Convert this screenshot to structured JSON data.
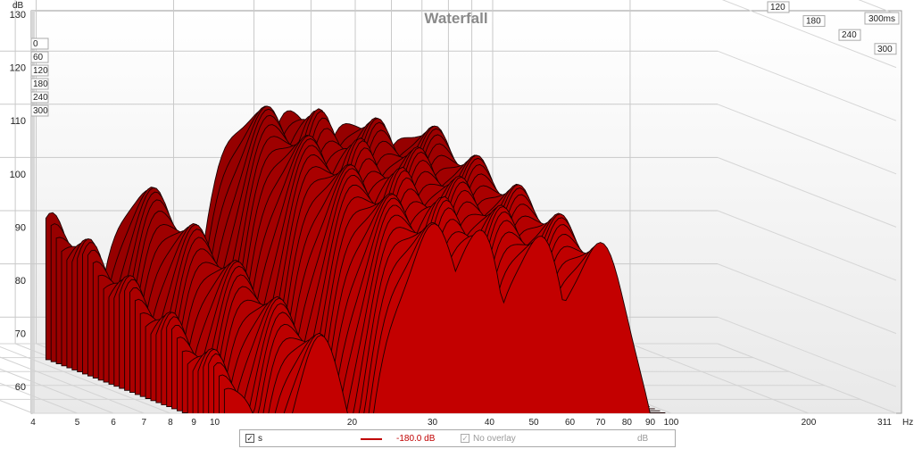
{
  "chart_data": {
    "type": "waterfall",
    "title": "Waterfall",
    "ylabel": "dB",
    "xunit": "Hz",
    "ylim": [
      55,
      130
    ],
    "xlim": [
      4,
      311
    ],
    "xscale": "log",
    "zunit": "ms",
    "z_end_label": "300ms",
    "y_ticks": [
      "60",
      "70",
      "80",
      "90",
      "100",
      "110",
      "120",
      "130"
    ],
    "x_ticks": [
      "4",
      "5",
      "6",
      "7",
      "8",
      "9",
      "10",
      "20",
      "30",
      "40",
      "50",
      "60",
      "70",
      "80",
      "90",
      "100",
      "200"
    ],
    "x_end_label": "311",
    "time_ticks": [
      "0",
      "60",
      "120",
      "180",
      "240",
      "300"
    ],
    "time_slices_ms": [
      0,
      60,
      120,
      180,
      240,
      300
    ],
    "peaks": [
      {
        "freq_hz": 11,
        "level_db": 78
      },
      {
        "freq_hz": 17,
        "level_db": 84
      },
      {
        "freq_hz": 30,
        "level_db": 99
      },
      {
        "freq_hz": 37,
        "level_db": 100
      },
      {
        "freq_hz": 50,
        "level_db": 98
      },
      {
        "freq_hz": 68,
        "level_db": 96
      }
    ],
    "grid": true,
    "series_color": "#c00000"
  },
  "legend": {
    "series_label": "s",
    "series_checked": true,
    "level": "-180.0 dB",
    "overlay_label": "No overlay",
    "unit": "dB"
  }
}
